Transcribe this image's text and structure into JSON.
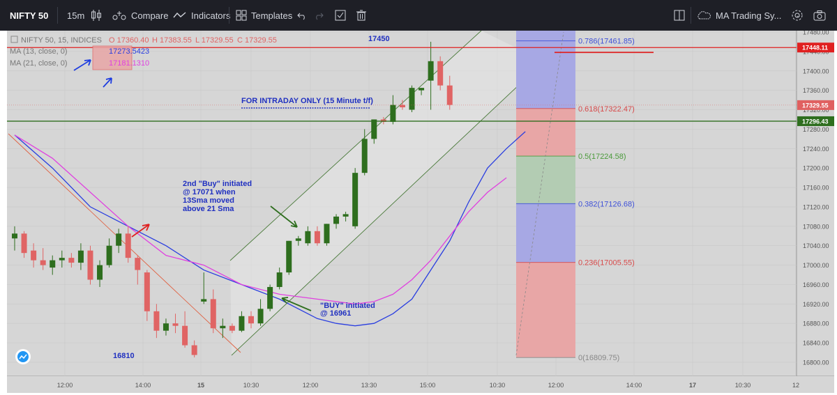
{
  "toolbar": {
    "symbol": "NIFTY 50",
    "interval": "15m",
    "compare": "Compare",
    "indicators": "Indicators",
    "templates": "Templates",
    "layout_name": "MA Trading Sy..."
  },
  "legend": {
    "title": "NIFTY 50, 15, INDICES",
    "open": "O 17360.40",
    "high": "H 17383.55",
    "low": "L 17329.55",
    "close": "C 17329.55",
    "ma13_label": "MA (13, close, 0)",
    "ma13_value": "17273.5423",
    "ma21_label": "MA (21, close, 0)",
    "ma21_value": "17181.1310"
  },
  "annotations": {
    "top_level": "17450",
    "bottom_level": "16810",
    "intraday_note": "FOR INTRADAY ONLY (15 Minute t/f)",
    "second_buy": [
      "2nd \"Buy\" initiated",
      "@ 17071 when",
      "13Sma moved",
      "above 21 Sma"
    ],
    "first_buy": [
      "\"BUY\" initiated",
      "@ 16961"
    ]
  },
  "fib": [
    {
      "label": "0.786(17461.85)",
      "price": 17461.85,
      "color": "#3f51d8"
    },
    {
      "label": "0.618(17322.47)",
      "price": 17322.47,
      "color": "#d84a4a"
    },
    {
      "label": "0.5(17224.58)",
      "price": 17224.58,
      "color": "#4a9a3a"
    },
    {
      "label": "0.382(17126.68)",
      "price": 17126.68,
      "color": "#3f51d8"
    },
    {
      "label": "0.236(17005.55)",
      "price": 17005.55,
      "color": "#d84a4a"
    },
    {
      "label": "0(16809.75)",
      "price": 16809.75,
      "color": "#888888"
    }
  ],
  "price_tags": [
    {
      "label": "17448.11",
      "price": 17448.11,
      "color": "#e02020"
    },
    {
      "label": "17329.55",
      "price": 17329.55,
      "color": "#e06060"
    },
    {
      "label": "17296.43",
      "price": 17296.43,
      "color": "#2e6e1e"
    }
  ],
  "colors": {
    "up": "#2e6e1e",
    "down": "#e06464",
    "ma13": "#2a3ee0",
    "ma21": "#e040e0",
    "bg": "#d6d6d6"
  },
  "chart_data": {
    "type": "candlestick",
    "title": "NIFTY 50, 15, INDICES",
    "ylim": [
      16780,
      17500
    ],
    "y_ticks": [
      16800,
      16840,
      16880,
      16920,
      16960,
      17000,
      17040,
      17080,
      17120,
      17160,
      17200,
      17240,
      17280,
      17320,
      17360,
      17400,
      17440,
      17480
    ],
    "x_ticks": [
      "12:00",
      "14:00",
      "15",
      "10:30",
      "12:00",
      "13:30",
      "15:00",
      "10:30",
      "12:00",
      "14:00",
      "17",
      "10:30",
      "12"
    ],
    "candles": [
      [
        17055,
        17080,
        17030,
        17065
      ],
      [
        17065,
        17070,
        17015,
        17025
      ],
      [
        17030,
        17045,
        16995,
        17010
      ],
      [
        17010,
        17035,
        16990,
        17000
      ],
      [
        16995,
        17020,
        16980,
        17010
      ],
      [
        17010,
        17030,
        16995,
        17015
      ],
      [
        17015,
        17025,
        16995,
        17005
      ],
      [
        17005,
        17045,
        16990,
        17030
      ],
      [
        17030,
        17040,
        16960,
        16970
      ],
      [
        16970,
        17010,
        16955,
        17000
      ],
      [
        17000,
        17055,
        16995,
        17040
      ],
      [
        17040,
        17075,
        17025,
        17065
      ],
      [
        17065,
        17080,
        17005,
        17015
      ],
      [
        17015,
        17020,
        16960,
        16990
      ],
      [
        16985,
        16990,
        16885,
        16905
      ],
      [
        16905,
        16920,
        16850,
        16865
      ],
      [
        16865,
        16890,
        16855,
        16880
      ],
      [
        16880,
        16900,
        16860,
        16875
      ],
      [
        16875,
        16905,
        16830,
        16835
      ],
      [
        16835,
        16845,
        16810,
        16815
      ],
      [
        16925,
        16985,
        16920,
        16930
      ],
      [
        16930,
        16950,
        16860,
        16870
      ],
      [
        16870,
        16890,
        16850,
        16875
      ],
      [
        16875,
        16880,
        16860,
        16865
      ],
      [
        16865,
        16905,
        16862,
        16895
      ],
      [
        16895,
        16905,
        16870,
        16880
      ],
      [
        16880,
        16930,
        16875,
        16910
      ],
      [
        16910,
        16960,
        16905,
        16955
      ],
      [
        16955,
        16995,
        16950,
        16985
      ],
      [
        16985,
        17050,
        16980,
        17050
      ],
      [
        17050,
        17060,
        17040,
        17055
      ],
      [
        17045,
        17080,
        17040,
        17070
      ],
      [
        17070,
        17080,
        17040,
        17045
      ],
      [
        17045,
        17085,
        17040,
        17085
      ],
      [
        17085,
        17105,
        17075,
        17100
      ],
      [
        17100,
        17110,
        17090,
        17105
      ],
      [
        17080,
        17200,
        17075,
        17190
      ],
      [
        17190,
        17280,
        17185,
        17260
      ],
      [
        17260,
        17300,
        17250,
        17300
      ],
      [
        17300,
        17305,
        17290,
        17295
      ],
      [
        17295,
        17350,
        17290,
        17330
      ],
      [
        17330,
        17340,
        17320,
        17325
      ],
      [
        17320,
        17370,
        17315,
        17365
      ],
      [
        17360,
        17365,
        17350,
        17365
      ],
      [
        17380,
        17460,
        17320,
        17420
      ],
      [
        17420,
        17430,
        17360,
        17370
      ],
      [
        17370,
        17390,
        17320,
        17330
      ]
    ],
    "ma13": [
      [
        0,
        17268
      ],
      [
        4,
        17200
      ],
      [
        8,
        17120
      ],
      [
        12,
        17080
      ],
      [
        16,
        17040
      ],
      [
        20,
        16990
      ],
      [
        24,
        16960
      ],
      [
        28,
        16930
      ],
      [
        32,
        16890
      ],
      [
        34,
        16880
      ],
      [
        36,
        16875
      ],
      [
        38,
        16880
      ],
      [
        40,
        16900
      ],
      [
        42,
        16930
      ],
      [
        44,
        16990
      ],
      [
        46,
        17050
      ],
      [
        48,
        17130
      ],
      [
        50,
        17200
      ],
      [
        52,
        17240
      ],
      [
        54,
        17275
      ]
    ],
    "ma21": [
      [
        0,
        17268
      ],
      [
        4,
        17220
      ],
      [
        8,
        17150
      ],
      [
        12,
        17080
      ],
      [
        16,
        17020
      ],
      [
        20,
        17000
      ],
      [
        24,
        16960
      ],
      [
        28,
        16940
      ],
      [
        32,
        16930
      ],
      [
        34,
        16925
      ],
      [
        36,
        16920
      ],
      [
        38,
        16925
      ],
      [
        40,
        16940
      ],
      [
        42,
        16970
      ],
      [
        44,
        17010
      ],
      [
        46,
        17060
      ],
      [
        48,
        17110
      ],
      [
        50,
        17150
      ],
      [
        52,
        17180
      ]
    ]
  }
}
